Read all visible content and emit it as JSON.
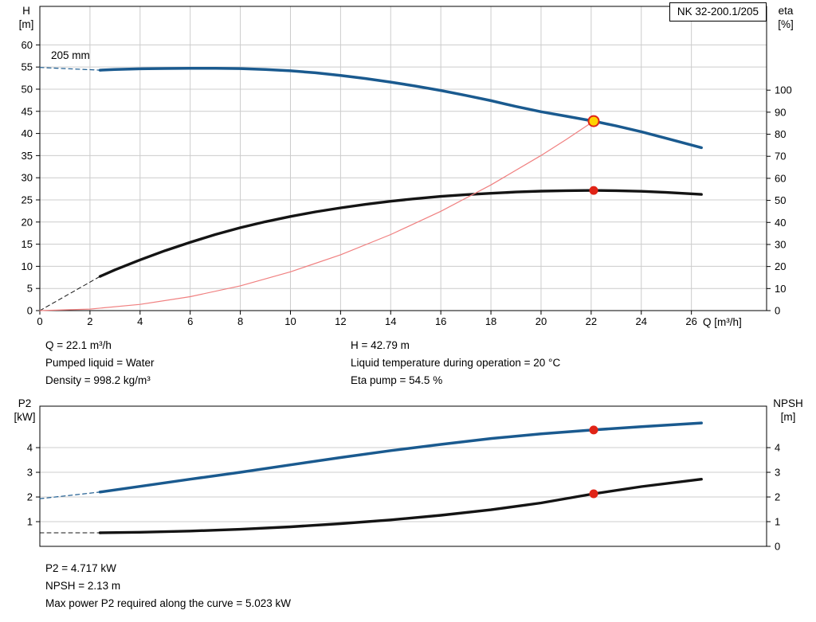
{
  "title_box": {
    "label": "NK 32-200.1/205"
  },
  "info_top": {
    "col1": [
      "Q = 22.1 m³/h",
      "Pumped liquid = Water",
      "Density = 998.2 kg/m³"
    ],
    "col2": [
      "H = 42.79 m",
      "Liquid temperature during operation = 20 °C",
      "Eta pump = 54.5 %"
    ]
  },
  "info_bottom": [
    "P2 = 4.717 kW",
    "NPSH = 2.13 m",
    "Max power P2 required along the curve = 5.023 kW"
  ],
  "colors": {
    "curve_blue": "#1a5a8f",
    "curve_black": "#141414",
    "marker_red": "#e02417",
    "marker_yellow": "#ffd200",
    "system_red": "#f08080",
    "grid": "#cccccc",
    "axis": "#000000"
  },
  "chart_data": [
    {
      "id": "head_eta",
      "type": "line",
      "annotation": "205 mm",
      "x_axis": {
        "label": "Q [m³/h]",
        "min": 0,
        "max": 29,
        "grid": true,
        "show_labels": true,
        "ticks": [
          0,
          2,
          4,
          6,
          8,
          10,
          12,
          14,
          16,
          18,
          20,
          22,
          24,
          26
        ]
      },
      "y_left": {
        "title": [
          "H",
          "[m]"
        ],
        "min": 0,
        "max": 68.7,
        "ticks": [
          0,
          5,
          10,
          15,
          20,
          25,
          30,
          35,
          40,
          45,
          50,
          55,
          60
        ]
      },
      "y_right": {
        "title": [
          "eta",
          "[%]"
        ],
        "min": 0,
        "max": 138,
        "ticks": [
          0,
          10,
          20,
          30,
          40,
          50,
          60,
          70,
          80,
          90,
          100
        ]
      },
      "series": [
        {
          "name": "head-curve-dashed",
          "axis": "left",
          "color_key": "curve_blue",
          "width": 1.2,
          "dash": "5 4",
          "points": [
            [
              0,
              54.9
            ],
            [
              2.4,
              54.3
            ]
          ]
        },
        {
          "name": "head-curve",
          "axis": "left",
          "color_key": "curve_blue",
          "width": 3.5,
          "points": [
            [
              2.4,
              54.3
            ],
            [
              3,
              54.45
            ],
            [
              4,
              54.6
            ],
            [
              5,
              54.68
            ],
            [
              6,
              54.72
            ],
            [
              7,
              54.72
            ],
            [
              8,
              54.65
            ],
            [
              9,
              54.45
            ],
            [
              10,
              54.15
            ],
            [
              11,
              53.7
            ],
            [
              12,
              53.1
            ],
            [
              13,
              52.4
            ],
            [
              14,
              51.6
            ],
            [
              15,
              50.7
            ],
            [
              16,
              49.7
            ],
            [
              17,
              48.6
            ],
            [
              18,
              47.4
            ],
            [
              19,
              46.1
            ],
            [
              20,
              44.9
            ],
            [
              21,
              43.9
            ],
            [
              22.1,
              42.79
            ],
            [
              23,
              41.7
            ],
            [
              24,
              40.4
            ],
            [
              25,
              38.9
            ],
            [
              26.4,
              36.8
            ]
          ]
        },
        {
          "name": "eta-curve-dashed",
          "axis": "right",
          "color_key": "curve_black",
          "width": 1,
          "dash": "5 4",
          "points": [
            [
              0,
              0
            ],
            [
              2.4,
              15.5
            ]
          ]
        },
        {
          "name": "eta-curve",
          "axis": "right",
          "color_key": "curve_black",
          "width": 3.4,
          "points": [
            [
              2.4,
              15.5
            ],
            [
              3,
              18.5
            ],
            [
              4,
              23
            ],
            [
              5,
              27.2
            ],
            [
              6,
              31
            ],
            [
              7,
              34.5
            ],
            [
              8,
              37.6
            ],
            [
              9,
              40.3
            ],
            [
              10,
              42.7
            ],
            [
              11,
              44.8
            ],
            [
              12,
              46.6
            ],
            [
              13,
              48.2
            ],
            [
              14,
              49.6
            ],
            [
              15,
              50.8
            ],
            [
              16,
              51.8
            ],
            [
              17,
              52.6
            ],
            [
              18,
              53.2
            ],
            [
              19,
              53.8
            ],
            [
              20,
              54.2
            ],
            [
              21,
              54.4
            ],
            [
              22.1,
              54.5
            ],
            [
              23,
              54.4
            ],
            [
              24,
              54.1
            ],
            [
              25,
              53.6
            ],
            [
              26.4,
              52.7
            ]
          ]
        },
        {
          "name": "system-curve",
          "axis": "left",
          "color_key": "system_red",
          "width": 1.2,
          "points": [
            [
              0,
              0
            ],
            [
              2,
              0.35
            ],
            [
              4,
              1.4
            ],
            [
              6,
              3.15
            ],
            [
              8,
              5.6
            ],
            [
              10,
              8.76
            ],
            [
              12,
              12.61
            ],
            [
              14,
              17.17
            ],
            [
              16,
              22.42
            ],
            [
              18,
              28.38
            ],
            [
              20,
              35.03
            ],
            [
              21,
              38.62
            ],
            [
              22.1,
              42.79
            ]
          ]
        }
      ],
      "markers": [
        {
          "name": "duty-point",
          "axis": "left",
          "x": 22.1,
          "y": 42.79,
          "r": 6.5,
          "fill_key": "marker_yellow",
          "stroke_key": "marker_red",
          "stroke_width": 2
        },
        {
          "name": "eta-point",
          "axis": "right",
          "x": 22.1,
          "y": 54.5,
          "r": 5.5,
          "fill_key": "marker_red"
        }
      ]
    },
    {
      "id": "p2_npsh",
      "type": "line",
      "annotation": "",
      "x_axis": {
        "label": "",
        "min": 0,
        "max": 29,
        "grid": false,
        "show_labels": false,
        "ticks": []
      },
      "y_left": {
        "title": [
          "P2",
          "[kW]"
        ],
        "min": 0,
        "max": 5.68,
        "ticks": [
          1,
          2,
          3,
          4
        ]
      },
      "y_right": {
        "title": [
          "NPSH",
          "[m]"
        ],
        "min": 0,
        "max": 5.68,
        "ticks": [
          0,
          1,
          2,
          3,
          4
        ]
      },
      "series": [
        {
          "name": "p2-curve-dashed",
          "axis": "left",
          "color_key": "curve_blue",
          "width": 1.2,
          "dash": "5 4",
          "points": [
            [
              0,
              1.93
            ],
            [
              2.4,
              2.2
            ]
          ]
        },
        {
          "name": "p2-curve",
          "axis": "left",
          "color_key": "curve_blue",
          "width": 3.5,
          "points": [
            [
              2.4,
              2.2
            ],
            [
              4,
              2.43
            ],
            [
              6,
              2.72
            ],
            [
              8,
              3.0
            ],
            [
              10,
              3.3
            ],
            [
              12,
              3.6
            ],
            [
              14,
              3.88
            ],
            [
              16,
              4.13
            ],
            [
              18,
              4.37
            ],
            [
              20,
              4.56
            ],
            [
              22.1,
              4.717
            ],
            [
              24,
              4.85
            ],
            [
              26.4,
              5.0
            ]
          ]
        },
        {
          "name": "npsh-curve-dashed",
          "axis": "right",
          "color_key": "curve_black",
          "width": 1,
          "dash": "5 4",
          "points": [
            [
              0,
              0.55
            ],
            [
              2.4,
              0.55
            ]
          ]
        },
        {
          "name": "npsh-curve",
          "axis": "right",
          "color_key": "curve_black",
          "width": 3.4,
          "points": [
            [
              2.4,
              0.55
            ],
            [
              4,
              0.57
            ],
            [
              6,
              0.62
            ],
            [
              8,
              0.69
            ],
            [
              10,
              0.79
            ],
            [
              12,
              0.92
            ],
            [
              14,
              1.07
            ],
            [
              16,
              1.26
            ],
            [
              18,
              1.48
            ],
            [
              20,
              1.76
            ],
            [
              22.1,
              2.13
            ],
            [
              24,
              2.42
            ],
            [
              26.4,
              2.72
            ]
          ]
        }
      ],
      "markers": [
        {
          "name": "p2-point",
          "axis": "left",
          "x": 22.1,
          "y": 4.717,
          "r": 5.5,
          "fill_key": "marker_red"
        },
        {
          "name": "npsh-point",
          "axis": "right",
          "x": 22.1,
          "y": 2.13,
          "r": 5.5,
          "fill_key": "marker_red"
        }
      ]
    }
  ]
}
